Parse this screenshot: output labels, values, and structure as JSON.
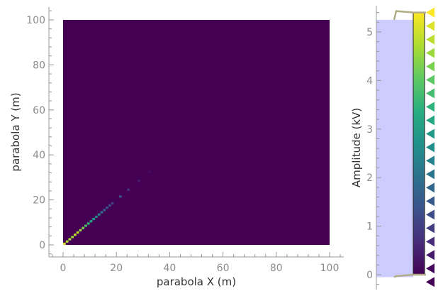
{
  "chart_data": [
    {
      "type": "heatmap",
      "title": "",
      "xlabel": "parabola X (m)",
      "ylabel": "parabola Y (m)",
      "xlim": [
        -4,
        105
      ],
      "ylim": [
        -5,
        105
      ],
      "x_ticks": [
        0,
        20,
        40,
        60,
        80,
        100
      ],
      "y_ticks": [
        0,
        20,
        40,
        60,
        80,
        100
      ],
      "x_tick_labels": [
        "0",
        "20",
        "40",
        "60",
        "80",
        "100"
      ],
      "y_tick_labels": [
        "0",
        "20",
        "40",
        "60",
        "80",
        "100"
      ],
      "grid": false,
      "extent": {
        "x": [
          0,
          100
        ],
        "y": [
          0,
          100
        ]
      },
      "background_value": 0,
      "colormap": "viridis",
      "highlight_cells": [
        {
          "x": 0.5,
          "y": 0.5,
          "value": 5.1
        },
        {
          "x": 1.5,
          "y": 1.5,
          "value": 4.7
        },
        {
          "x": 2.5,
          "y": 2.5,
          "value": 4.7
        },
        {
          "x": 3.5,
          "y": 3.5,
          "value": 4.6
        },
        {
          "x": 4.5,
          "y": 4.5,
          "value": 4.9
        },
        {
          "x": 5.5,
          "y": 5.5,
          "value": 4.8
        },
        {
          "x": 6.5,
          "y": 6.5,
          "value": 4.5
        },
        {
          "x": 7.5,
          "y": 7.5,
          "value": 4.3
        },
        {
          "x": 8.5,
          "y": 8.5,
          "value": 3.8
        },
        {
          "x": 9.5,
          "y": 9.5,
          "value": 3.5
        },
        {
          "x": 10.5,
          "y": 10.5,
          "value": 3.1
        },
        {
          "x": 11.5,
          "y": 11.5,
          "value": 2.8
        },
        {
          "x": 12.5,
          "y": 12.5,
          "value": 2.4
        },
        {
          "x": 13.5,
          "y": 13.5,
          "value": 2.2
        },
        {
          "x": 14.5,
          "y": 14.5,
          "value": 1.9
        },
        {
          "x": 15.5,
          "y": 15.5,
          "value": 1.6
        },
        {
          "x": 16.5,
          "y": 16.5,
          "value": 1.4
        },
        {
          "x": 17.5,
          "y": 17.5,
          "value": 1.2
        },
        {
          "x": 18.5,
          "y": 18.5,
          "value": 1.0
        },
        {
          "x": 21.5,
          "y": 21.5,
          "value": 1.4
        },
        {
          "x": 24.5,
          "y": 24.5,
          "value": 0.8
        },
        {
          "x": 28.5,
          "y": 28.5,
          "value": 0.4
        },
        {
          "x": 32.5,
          "y": 32.5,
          "value": 0.2
        }
      ]
    },
    {
      "type": "colorbar",
      "ylabel": "Amplitude (kV)",
      "ylim": [
        -0.3,
        5.5
      ],
      "colormap": "viridis",
      "vmin": 0,
      "vmax": 5.4,
      "y_ticks": [
        0,
        1,
        2,
        3,
        4,
        5
      ],
      "y_tick_labels": [
        "0",
        "1",
        "2",
        "3",
        "4",
        "5"
      ],
      "histogram_fill_color": "#ccccff",
      "bracket_color": "#b0ad86",
      "marker_count": 21
    }
  ]
}
